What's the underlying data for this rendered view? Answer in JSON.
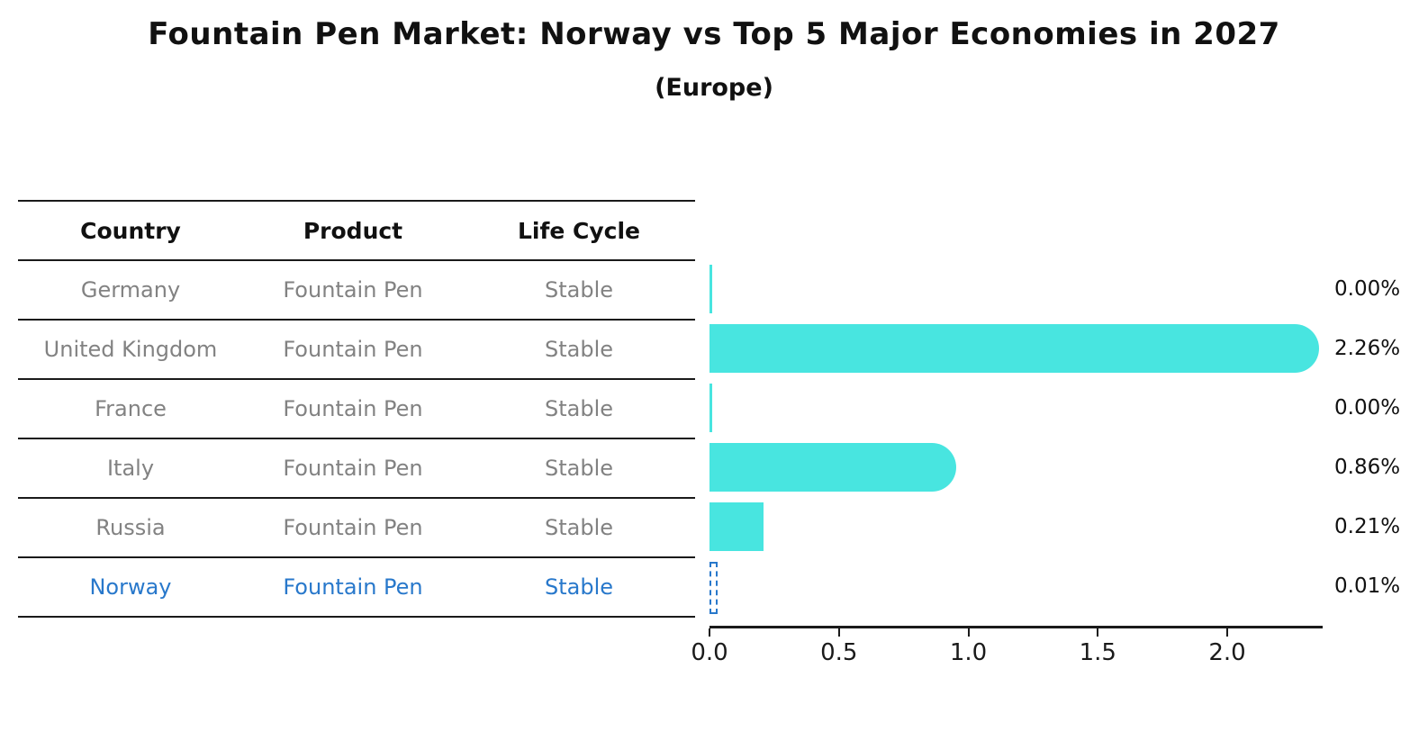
{
  "title": "Fountain Pen Market: Norway vs Top 5 Major Economies in 2027",
  "subtitle": "(Europe)",
  "table": {
    "headers": [
      "Country",
      "Product",
      "Life Cycle"
    ],
    "rows": [
      {
        "country": "Germany",
        "product": "Fountain Pen",
        "life_cycle": "Stable",
        "highlighted": false
      },
      {
        "country": "United Kingdom",
        "product": "Fountain Pen",
        "life_cycle": "Stable",
        "highlighted": false
      },
      {
        "country": "France",
        "product": "Fountain Pen",
        "life_cycle": "Stable",
        "highlighted": false
      },
      {
        "country": "Italy",
        "product": "Fountain Pen",
        "life_cycle": "Stable",
        "highlighted": false
      },
      {
        "country": "Russia",
        "product": "Fountain Pen",
        "life_cycle": "Stable",
        "highlighted": true
      }
    ],
    "last_row": {
      "country": "Norway",
      "product": "Fountain Pen",
      "life_cycle": "Stable",
      "highlighted": true
    }
  },
  "chart_data": {
    "type": "bar",
    "orientation": "horizontal",
    "title": "Fountain Pen Market: Norway vs Top 5 Major Economies in 2027",
    "subtitle": "(Europe)",
    "categories": [
      "Germany",
      "United Kingdom",
      "France",
      "Italy",
      "Russia",
      "Norway"
    ],
    "values": [
      0.0,
      2.26,
      0.0,
      0.86,
      0.21,
      0.01
    ],
    "value_labels": [
      "0.00%",
      "2.26%",
      "0.00%",
      "0.86%",
      "0.21%",
      "0.01%"
    ],
    "unit": "percent",
    "xticks": [
      "0.0",
      "0.5",
      "1.0",
      "1.5",
      "2.0"
    ],
    "xtick_values": [
      0.0,
      0.5,
      1.0,
      1.5,
      2.0
    ],
    "xlim": [
      0,
      2.36
    ],
    "grid": false,
    "legend": "none",
    "bar_color": "#48e5e0",
    "highlight_color": "#2878cb",
    "highlight_index": 5,
    "highlight_category": "Norway"
  },
  "colors": {
    "bar": "#48e5e0",
    "highlight_blue": "#2878cb",
    "table_text_gray": "#828282",
    "line_black": "#1a1a1a"
  }
}
